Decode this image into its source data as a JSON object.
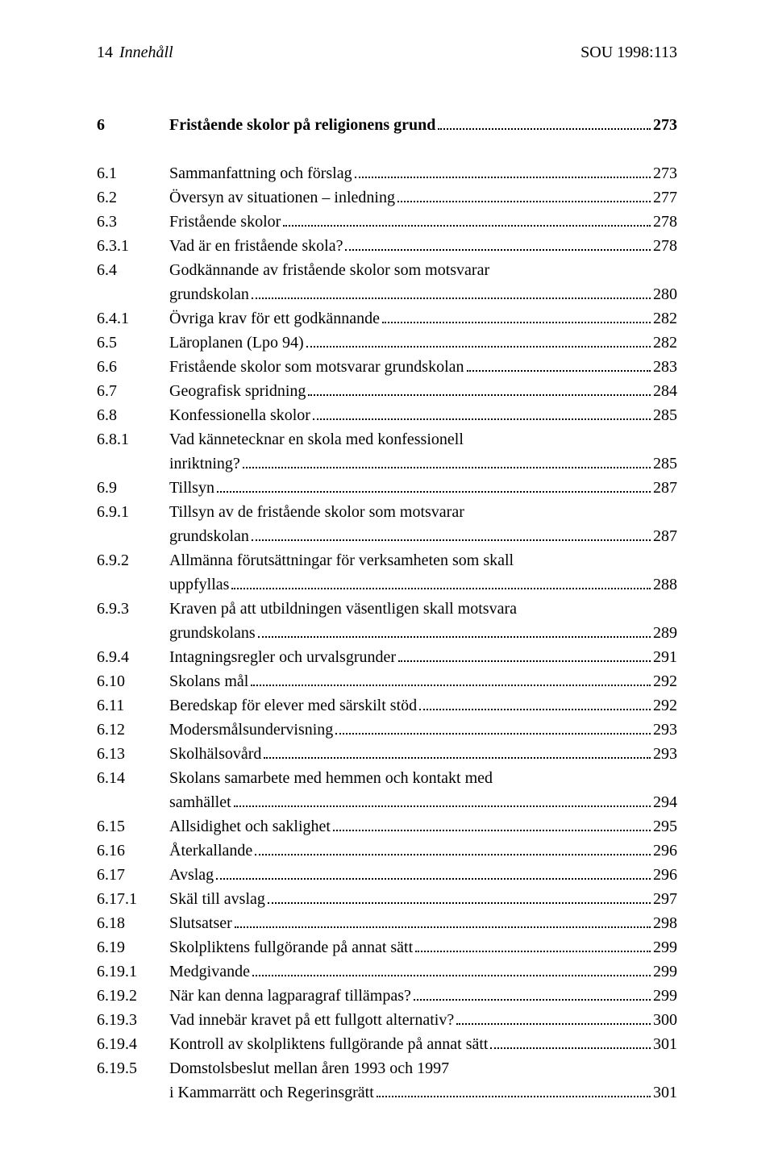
{
  "header": {
    "page_number": "14",
    "section_label": "Innehåll",
    "doc_ref": "SOU 1998:113"
  },
  "chapter": {
    "number": "6",
    "title": "Fristående skolor på religionens grund",
    "page": "273"
  },
  "entries": [
    {
      "num": "6.1",
      "title": "Sammanfattning och förslag",
      "page": "273"
    },
    {
      "num": "6.2",
      "title": "Översyn av situationen – inledning",
      "page": "277"
    },
    {
      "num": "6.3",
      "title": "Fristående skolor",
      "page": "278"
    },
    {
      "num": "6.3.1",
      "title": "Vad är en fristående skola?",
      "page": "278"
    },
    {
      "num": "6.4",
      "title": "Godkännande av fristående skolor som motsvarar",
      "cont": "grundskolan",
      "page": "280"
    },
    {
      "num": "6.4.1",
      "title": "Övriga krav för ett godkännande",
      "page": "282"
    },
    {
      "num": "6.5",
      "title": "Läroplanen (Lpo 94)",
      "page": "282"
    },
    {
      "num": "6.6",
      "title": "Fristående skolor som motsvarar grundskolan",
      "page": "283"
    },
    {
      "num": "6.7",
      "title": "Geografisk spridning",
      "page": "284"
    },
    {
      "num": "6.8",
      "title": "Konfessionella skolor",
      "page": "285"
    },
    {
      "num": "6.8.1",
      "title": "Vad kännetecknar en skola med konfessionell",
      "cont": "inriktning?",
      "page": "285"
    },
    {
      "num": "6.9",
      "title": "Tillsyn",
      "page": "287"
    },
    {
      "num": "6.9.1",
      "title": "Tillsyn av de fristående skolor som motsvarar",
      "cont": "grundskolan",
      "page": "287"
    },
    {
      "num": "6.9.2",
      "title": "Allmänna förutsättningar för verksamheten som skall",
      "cont": "uppfyllas",
      "page": "288"
    },
    {
      "num": "6.9.3",
      "title": "Kraven på att utbildningen väsentligen skall motsvara",
      "cont": "grundskolans",
      "page": "289"
    },
    {
      "num": "6.9.4",
      "title": "Intagningsregler och urvalsgrunder",
      "page": "291"
    },
    {
      "num": "6.10",
      "title": "Skolans mål",
      "page": "292"
    },
    {
      "num": "6.11",
      "title": "Beredskap för elever med särskilt stöd",
      "page": "292"
    },
    {
      "num": "6.12",
      "title": "Modersmålsundervisning",
      "page": "293"
    },
    {
      "num": "6.13",
      "title": "Skolhälsovård",
      "page": "293"
    },
    {
      "num": "6.14",
      "title": "Skolans samarbete med hemmen och kontakt med",
      "cont": "samhället",
      "page": "294"
    },
    {
      "num": "6.15",
      "title": "Allsidighet och saklighet",
      "page": "295"
    },
    {
      "num": "6.16",
      "title": "Återkallande",
      "page": "296"
    },
    {
      "num": "6.17",
      "title": "Avslag",
      "page": "296"
    },
    {
      "num": "6.17.1",
      "title": "Skäl till avslag",
      "page": "297"
    },
    {
      "num": "6.18",
      "title": "Slutsatser",
      "page": "298"
    },
    {
      "num": "6.19",
      "title": "Skolpliktens fullgörande på annat sätt",
      "page": "299"
    },
    {
      "num": "6.19.1",
      "title": "Medgivande",
      "page": "299"
    },
    {
      "num": "6.19.2",
      "title": "När kan denna lagparagraf tillämpas?",
      "page": "299"
    },
    {
      "num": "6.19.3",
      "title": "Vad innebär kravet på ett fullgott alternativ?",
      "page": "300"
    },
    {
      "num": "6.19.4",
      "title": "Kontroll av skolpliktens fullgörande på annat sätt",
      "page": "301"
    },
    {
      "num": "6.19.5",
      "title": "Domstolsbeslut mellan åren 1993 och 1997",
      "cont": "i Kammarrätt och Regerinsgrätt",
      "page": "301"
    }
  ]
}
